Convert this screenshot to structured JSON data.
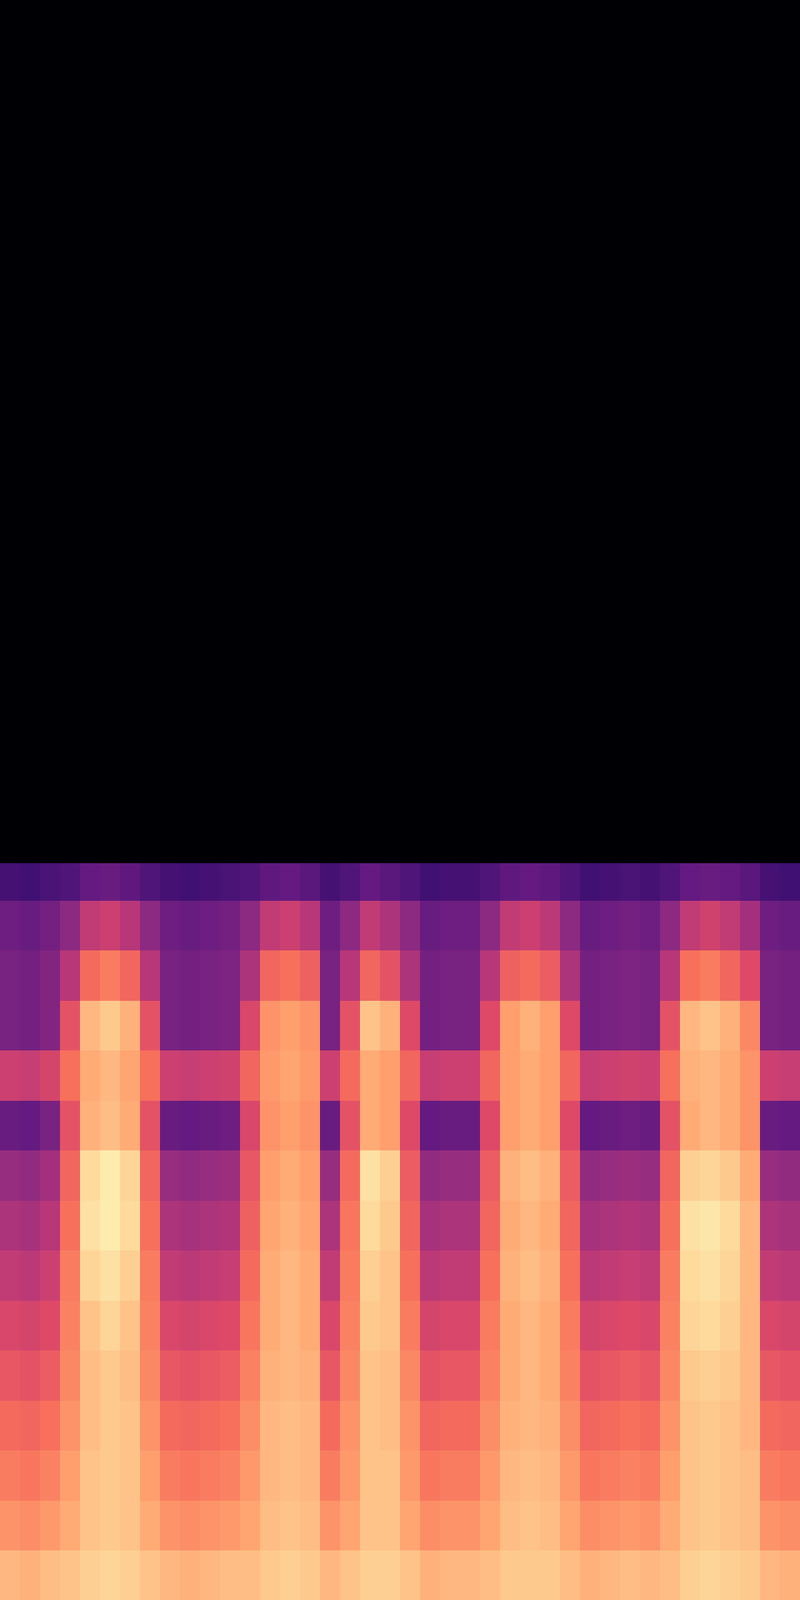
{
  "chart_data": {
    "type": "heatmap",
    "tick_labels": false,
    "xlim": [
      0,
      40
    ],
    "ylim": [
      0,
      128
    ],
    "x_edges": [
      0,
      1,
      2,
      3,
      4,
      5,
      6,
      7,
      8,
      9,
      10,
      11,
      12,
      13,
      14,
      15,
      16,
      17,
      18,
      19,
      20,
      21,
      22,
      23,
      24,
      25,
      26,
      27,
      28,
      29,
      30,
      31,
      32,
      33,
      34,
      35,
      36,
      37,
      38,
      39,
      40
    ],
    "y_edges": [
      0,
      4,
      8,
      12,
      16,
      20,
      24,
      28,
      32,
      36,
      40,
      44,
      48,
      52,
      56,
      59,
      128
    ],
    "value_range": [
      -80,
      0
    ],
    "cells": [
      [
        -12,
        -13,
        -11,
        -10,
        -8,
        -7,
        -8,
        -10,
        -12,
        -13,
        -12,
        -11,
        -11,
        -9,
        -8,
        -9,
        -12,
        -10,
        -8,
        -8,
        -10,
        -13,
        -12,
        -12,
        -11,
        -9,
        -9,
        -9,
        -11,
        -13,
        -12,
        -11,
        -12,
        -11,
        -8,
        -7,
        -8,
        -9,
        -12,
        -13
      ],
      [
        -18,
        -19,
        -17,
        -14,
        -10,
        -9,
        -10,
        -14,
        -18,
        -19,
        -18,
        -17,
        -15,
        -11,
        -10,
        -11,
        -18,
        -15,
        -10,
        -10,
        -15,
        -19,
        -18,
        -18,
        -15,
        -11,
        -10,
        -11,
        -15,
        -19,
        -18,
        -17,
        -18,
        -14,
        -10,
        -9,
        -10,
        -11,
        -18,
        -19
      ],
      [
        -22,
        -23,
        -21,
        -16,
        -10,
        -9,
        -10,
        -16,
        -22,
        -23,
        -22,
        -21,
        -17,
        -12,
        -11,
        -12,
        -22,
        -17,
        -10,
        -10,
        -17,
        -23,
        -22,
        -22,
        -17,
        -12,
        -11,
        -12,
        -17,
        -23,
        -22,
        -21,
        -22,
        -16,
        -10,
        -9,
        -10,
        -11,
        -22,
        -23
      ],
      [
        -25,
        -26,
        -24,
        -18,
        -11,
        -9,
        -10,
        -18,
        -25,
        -26,
        -25,
        -24,
        -19,
        -12,
        -11,
        -12,
        -25,
        -18,
        -10,
        -11,
        -18,
        -26,
        -25,
        -25,
        -19,
        -13,
        -12,
        -13,
        -19,
        -26,
        -25,
        -24,
        -25,
        -18,
        -10,
        -9,
        -10,
        -12,
        -25,
        -26
      ],
      [
        -29,
        -30,
        -28,
        -20,
        -11,
        -9,
        -11,
        -20,
        -29,
        -30,
        -29,
        -28,
        -21,
        -13,
        -12,
        -13,
        -29,
        -20,
        -10,
        -11,
        -20,
        -30,
        -29,
        -29,
        -21,
        -14,
        -12,
        -14,
        -21,
        -30,
        -29,
        -28,
        -29,
        -20,
        -9,
        -8,
        -9,
        -12,
        -29,
        -30
      ],
      [
        -33,
        -34,
        -32,
        -21,
        -10,
        -7,
        -10,
        -21,
        -33,
        -34,
        -33,
        -32,
        -23,
        -14,
        -12,
        -14,
        -33,
        -21,
        -9,
        -10,
        -22,
        -34,
        -33,
        -33,
        -22,
        -14,
        -12,
        -14,
        -22,
        -34,
        -33,
        -32,
        -33,
        -21,
        -7,
        -6,
        -8,
        -12,
        -33,
        -34
      ],
      [
        -38,
        -39,
        -36,
        -22,
        -7,
        -5,
        -8,
        -22,
        -38,
        -39,
        -38,
        -37,
        -25,
        -14,
        -12,
        -14,
        -38,
        -22,
        -8,
        -10,
        -24,
        -39,
        -38,
        -38,
        -24,
        -13,
        -11,
        -13,
        -24,
        -39,
        -38,
        -37,
        -38,
        -22,
        -6,
        -5,
        -7,
        -12,
        -38,
        -39
      ],
      [
        -42,
        -43,
        -40,
        -24,
        -5,
        -3,
        -6,
        -24,
        -42,
        -43,
        -42,
        -41,
        -27,
        -15,
        -13,
        -15,
        -42,
        -23,
        -6,
        -9,
        -26,
        -43,
        -42,
        -42,
        -26,
        -14,
        -12,
        -14,
        -26,
        -43,
        -42,
        -41,
        -42,
        -24,
        -5,
        -4,
        -6,
        -12,
        -42,
        -43
      ],
      [
        -46,
        -47,
        -44,
        -26,
        -6,
        -3,
        -7,
        -26,
        -46,
        -47,
        -46,
        -45,
        -29,
        -16,
        -14,
        -16,
        -46,
        -25,
        -5,
        -8,
        -28,
        -47,
        -46,
        -46,
        -28,
        -13,
        -11,
        -13,
        -28,
        -47,
        -46,
        -45,
        -46,
        -26,
        -8,
        -7,
        -9,
        -14,
        -46,
        -47
      ],
      [
        -55,
        -56,
        -52,
        -30,
        -13,
        -11,
        -14,
        -30,
        -55,
        -56,
        -55,
        -54,
        -33,
        -18,
        -16,
        -18,
        -55,
        -30,
        -14,
        -16,
        -32,
        -56,
        -55,
        -55,
        -32,
        -16,
        -14,
        -16,
        -32,
        -56,
        -55,
        -54,
        -55,
        -30,
        -14,
        -12,
        -14,
        -18,
        -55,
        -56
      ],
      [
        -36,
        -37,
        -34,
        -24,
        -14,
        -12,
        -15,
        -24,
        -36,
        -37,
        -36,
        -35,
        -26,
        -17,
        -15,
        -17,
        -36,
        -25,
        -14,
        -16,
        -26,
        -37,
        -36,
        -36,
        -26,
        -16,
        -14,
        -16,
        -26,
        -37,
        -36,
        -35,
        -36,
        -24,
        -13,
        -12,
        -14,
        -18,
        -36,
        -37
      ],
      [
        -52,
        -53,
        -50,
        -30,
        -12,
        -9,
        -13,
        -30,
        -52,
        -53,
        -52,
        -51,
        -33,
        -18,
        -16,
        -18,
        -52,
        -30,
        -10,
        -13,
        -32,
        -53,
        -52,
        -52,
        -32,
        -16,
        -13,
        -16,
        -32,
        -53,
        -52,
        -51,
        -52,
        -30,
        -12,
        -10,
        -13,
        -20,
        -52,
        -53
      ],
      [
        -52,
        -53,
        -50,
        -40,
        -25,
        -22,
        -26,
        -40,
        -52,
        -53,
        -52,
        -51,
        -42,
        -26,
        -24,
        -27,
        -52,
        -40,
        -26,
        -30,
        -42,
        -53,
        -52,
        -52,
        -40,
        -27,
        -25,
        -28,
        -42,
        -53,
        -52,
        -51,
        -52,
        -40,
        -24,
        -22,
        -26,
        -32,
        -52,
        -53
      ],
      [
        -54,
        -55,
        -53,
        -48,
        -38,
        -36,
        -40,
        -48,
        -54,
        -55,
        -54,
        -53,
        -48,
        -38,
        -36,
        -40,
        -54,
        -48,
        -38,
        -42,
        -48,
        -55,
        -54,
        -54,
        -48,
        -38,
        -36,
        -39,
        -48,
        -55,
        -54,
        -53,
        -54,
        -48,
        -38,
        -35,
        -38,
        -44,
        -54,
        -55
      ],
      [
        -62,
        -63,
        -61,
        -60,
        -56,
        -55,
        -57,
        -60,
        -62,
        -63,
        -62,
        -61,
        -60,
        -57,
        -56,
        -58,
        -62,
        -60,
        -56,
        -58,
        -60,
        -63,
        -62,
        -62,
        -60,
        -57,
        -56,
        -57,
        -60,
        -63,
        -62,
        -61,
        -62,
        -60,
        -56,
        -55,
        -56,
        -58,
        -62,
        -63
      ],
      [
        -80,
        -80,
        -80,
        -80,
        -80,
        -80,
        -80,
        -80,
        -80,
        -80,
        -80,
        -80,
        -80,
        -80,
        -80,
        -80,
        -80,
        -80,
        -80,
        -80,
        -80,
        -80,
        -80,
        -80,
        -80,
        -80,
        -80,
        -80,
        -80,
        -80,
        -80,
        -80,
        -80,
        -80,
        -80,
        -80,
        -80,
        -80,
        -80,
        -80
      ]
    ]
  }
}
